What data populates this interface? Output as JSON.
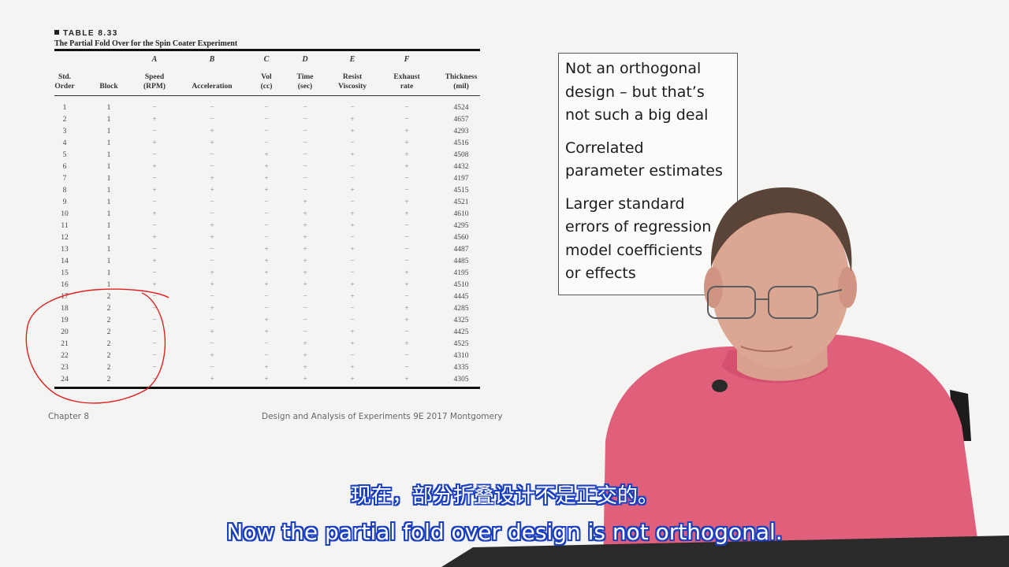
{
  "table": {
    "number": "TABLE 8.33",
    "title": "The Partial Fold Over for the Spin Coater Experiment",
    "factor_letters": [
      "A",
      "B",
      "C",
      "D",
      "E",
      "F"
    ],
    "headers": [
      [
        "Std.",
        "Order"
      ],
      [
        "Block"
      ],
      [
        "Speed",
        "(RPM)"
      ],
      [
        "Acceleration"
      ],
      [
        "Vol",
        "(cc)"
      ],
      [
        "Time",
        "(sec)"
      ],
      [
        "Resist",
        "Viscosity"
      ],
      [
        "Exhaust",
        "rate"
      ],
      [
        "Thickness",
        "(mil)"
      ]
    ],
    "rows": [
      [
        "1",
        "1",
        "−",
        "−",
        "−",
        "−",
        "−",
        "−",
        "4524"
      ],
      [
        "2",
        "1",
        "+",
        "−",
        "−",
        "−",
        "+",
        "−",
        "4657"
      ],
      [
        "3",
        "1",
        "−",
        "+",
        "−",
        "−",
        "+",
        "+",
        "4293"
      ],
      [
        "4",
        "1",
        "+",
        "+",
        "−",
        "−",
        "−",
        "+",
        "4516"
      ],
      [
        "5",
        "1",
        "−",
        "−",
        "+",
        "−",
        "+",
        "+",
        "4508"
      ],
      [
        "6",
        "1",
        "+",
        "−",
        "+",
        "−",
        "−",
        "+",
        "4432"
      ],
      [
        "7",
        "1",
        "−",
        "+",
        "+",
        "−",
        "−",
        "−",
        "4197"
      ],
      [
        "8",
        "1",
        "+",
        "+",
        "+",
        "−",
        "+",
        "−",
        "4515"
      ],
      [
        "9",
        "1",
        "−",
        "−",
        "−",
        "+",
        "−",
        "+",
        "4521"
      ],
      [
        "10",
        "1",
        "+",
        "−",
        "−",
        "+",
        "+",
        "+",
        "4610"
      ],
      [
        "11",
        "1",
        "−",
        "+",
        "−",
        "+",
        "+",
        "−",
        "4295"
      ],
      [
        "12",
        "1",
        "+",
        "+",
        "−",
        "+",
        "−",
        "−",
        "4560"
      ],
      [
        "13",
        "1",
        "−",
        "−",
        "+",
        "+",
        "+",
        "−",
        "4487"
      ],
      [
        "14",
        "1",
        "+",
        "−",
        "+",
        "+",
        "−",
        "−",
        "4485"
      ],
      [
        "15",
        "1",
        "−",
        "+",
        "+",
        "+",
        "−",
        "+",
        "4195"
      ],
      [
        "16",
        "1",
        "+",
        "+",
        "+",
        "+",
        "+",
        "+",
        "4510"
      ],
      [
        "17",
        "2",
        "−",
        "−",
        "−",
        "−",
        "+",
        "−",
        "4445"
      ],
      [
        "18",
        "2",
        "−",
        "+",
        "−",
        "−",
        "−",
        "+",
        "4285"
      ],
      [
        "19",
        "2",
        "−",
        "−",
        "+",
        "−",
        "−",
        "+",
        "4325"
      ],
      [
        "20",
        "2",
        "−",
        "+",
        "+",
        "−",
        "+",
        "−",
        "4425"
      ],
      [
        "21",
        "2",
        "−",
        "−",
        "−",
        "+",
        "+",
        "+",
        "4525"
      ],
      [
        "22",
        "2",
        "−",
        "+",
        "−",
        "+",
        "−",
        "−",
        "4310"
      ],
      [
        "23",
        "2",
        "−",
        "−",
        "+",
        "+",
        "+",
        "−",
        "4335"
      ],
      [
        "24",
        "2",
        "−",
        "+",
        "+",
        "+",
        "+",
        "+",
        "4305"
      ]
    ]
  },
  "footer": {
    "chapter": "Chapter 8",
    "source": "Design and Analysis of Experiments 9E 2017 Montgomery"
  },
  "notes": [
    "Not an orthogonal\ndesign – but that’s\nnot such a big deal",
    "Correlated\nparameter estimates",
    "Larger standard\nerrors of regression\nmodel coefficients\nor effects"
  ],
  "subtitles": {
    "zh": "现在，部分折叠设计不是正交的。",
    "en": "Now the partial fold over design is not orthogonal."
  },
  "colors": {
    "annotation": "#e02020",
    "sweater": "#e0607c",
    "subtitle_outline": "#1a3fbf"
  }
}
